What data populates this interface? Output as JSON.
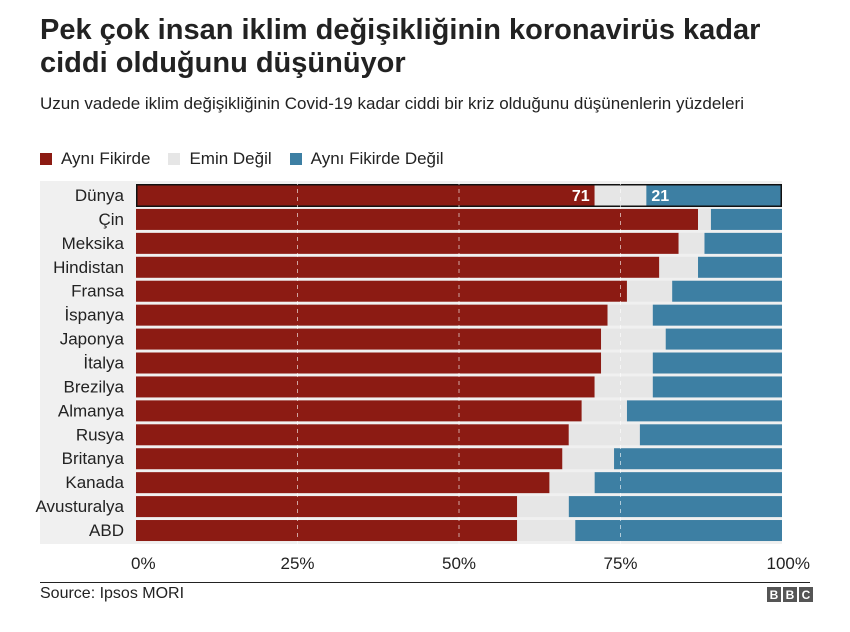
{
  "title": "Pek çok insan iklim değişikliğinin koronavirüs kadar ciddi olduğunu düşünüyor",
  "subtitle": "Uzun vadede iklim değişikliğinin Covid-19 kadar ciddi bir kriz olduğunu düşünenlerin yüzdeleri",
  "source": "Source: Ipsos MORI",
  "brand": [
    "B",
    "B",
    "C"
  ],
  "colors": {
    "agree": "#8c1b13",
    "unsure": "#e6e6e6",
    "disagree": "#3d7fa3"
  },
  "chart_data": {
    "type": "bar",
    "orientation": "horizontal",
    "stacked": true,
    "categories": [
      "Dünya",
      "Çin",
      "Meksika",
      "Hindistan",
      "Fransa",
      "İspanya",
      "Japonya",
      "İtalya",
      "Brezilya",
      "Almanya",
      "Rusya",
      "Britanya",
      "Kanada",
      "Avusturalya",
      "ABD"
    ],
    "series": [
      {
        "name": "Aynı Fikirde",
        "values": [
          71,
          87,
          84,
          81,
          76,
          73,
          72,
          72,
          71,
          69,
          67,
          66,
          64,
          59,
          59
        ]
      },
      {
        "name": "Emin Değil",
        "values": [
          8,
          2,
          4,
          6,
          7,
          7,
          10,
          8,
          9,
          7,
          11,
          8,
          7,
          8,
          9
        ]
      },
      {
        "name": "Aynı Fikirde Değil",
        "values": [
          21,
          11,
          12,
          13,
          17,
          20,
          18,
          20,
          20,
          24,
          22,
          26,
          29,
          33,
          32
        ]
      }
    ],
    "data_labels": [
      {
        "category": "Dünya",
        "series": "Aynı Fikirde",
        "text": "71"
      },
      {
        "category": "Dünya",
        "series": "Aynı Fikirde Değil",
        "text": "21"
      }
    ],
    "x_ticks": [
      "0%",
      "25%",
      "50%",
      "75%",
      "100%"
    ],
    "xlim": [
      0,
      100
    ],
    "gridlines": "dashed vertical at 25, 50, 75",
    "highlighted_category": "Dünya",
    "legend_position": "top"
  }
}
